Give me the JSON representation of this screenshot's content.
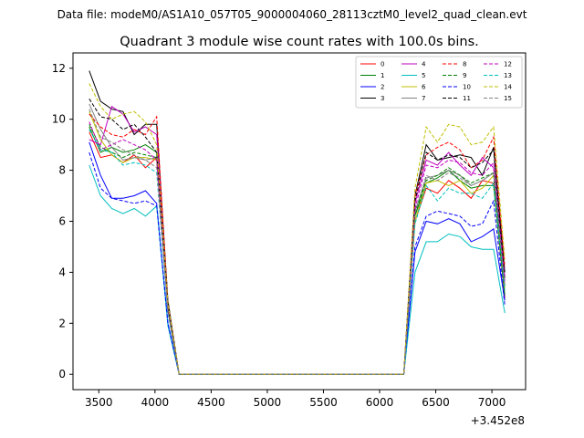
{
  "figure": {
    "suptitle": "Data file: modeM0/AS1A10_057T05_9000004060_28113cztM0_level2_quad_clean.evt"
  },
  "chart_data": {
    "type": "line",
    "title": "Quadrant 3 module wise count rates with 100.0s bins.",
    "xlabel": "",
    "ylabel": "",
    "x_offset_label": "+3.452e8",
    "xlim": [
      3270,
      7300
    ],
    "ylim": [
      -0.6,
      12.6
    ],
    "xticks": [
      3500,
      4000,
      4500,
      5000,
      5500,
      6000,
      6500,
      7000
    ],
    "yticks": [
      0,
      2,
      4,
      6,
      8,
      10,
      12
    ],
    "grid": false,
    "legend": {
      "position": "top-right",
      "columns": 4
    },
    "x": [
      3415,
      3515,
      3615,
      3715,
      3815,
      3915,
      4015,
      4115,
      4215,
      6215,
      6315,
      6415,
      6515,
      6615,
      6715,
      6815,
      6915,
      7015,
      7115
    ],
    "series": [
      {
        "name": "0",
        "color": "#ff0000",
        "dash": false,
        "values": [
          9.5,
          8.5,
          8.6,
          8.3,
          8.6,
          8.1,
          8.5,
          2.5,
          0,
          0,
          6.0,
          7.3,
          7.1,
          7.6,
          7.3,
          6.9,
          7.6,
          7.5,
          3.0
        ]
      },
      {
        "name": "1",
        "color": "#008000",
        "dash": false,
        "values": [
          9.7,
          8.7,
          8.9,
          8.7,
          8.8,
          9.0,
          8.7,
          2.6,
          0,
          0,
          6.2,
          7.5,
          7.7,
          8.0,
          7.6,
          7.3,
          7.4,
          7.4,
          3.1
        ]
      },
      {
        "name": "2",
        "color": "#0000ff",
        "dash": false,
        "values": [
          9.1,
          7.8,
          6.9,
          6.9,
          7.0,
          7.2,
          6.7,
          2.0,
          0,
          0,
          4.8,
          6.0,
          5.9,
          6.1,
          5.9,
          5.2,
          5.4,
          5.7,
          2.9
        ]
      },
      {
        "name": "3",
        "color": "#000000",
        "dash": false,
        "values": [
          11.9,
          10.7,
          10.4,
          10.3,
          9.4,
          9.8,
          9.8,
          2.9,
          0,
          0,
          7.0,
          9.0,
          8.4,
          8.5,
          8.6,
          8.5,
          7.8,
          8.9,
          4.0
        ]
      },
      {
        "name": "4",
        "color": "#bf00bf",
        "dash": false,
        "values": [
          9.2,
          9.0,
          10.5,
          10.2,
          9.5,
          9.7,
          9.4,
          2.7,
          0,
          0,
          6.7,
          8.4,
          8.2,
          8.7,
          8.2,
          7.8,
          8.5,
          8.1,
          3.8
        ]
      },
      {
        "name": "5",
        "color": "#00bfbf",
        "dash": false,
        "values": [
          8.2,
          7.0,
          6.5,
          6.3,
          6.5,
          6.2,
          6.6,
          1.9,
          0,
          0,
          4.0,
          5.2,
          5.2,
          5.5,
          5.4,
          5.0,
          4.9,
          4.9,
          2.4
        ]
      },
      {
        "name": "6",
        "color": "#bfbf00",
        "dash": false,
        "values": [
          10.3,
          9.2,
          8.6,
          8.3,
          8.5,
          8.5,
          8.4,
          2.5,
          0,
          0,
          6.0,
          7.5,
          7.6,
          7.4,
          7.6,
          7.1,
          7.3,
          7.8,
          3.4
        ]
      },
      {
        "name": "7",
        "color": "#808080",
        "dash": false,
        "values": [
          10.6,
          9.6,
          8.9,
          8.4,
          8.5,
          8.4,
          8.5,
          2.5,
          0,
          0,
          6.4,
          7.7,
          7.8,
          8.0,
          7.8,
          7.4,
          7.6,
          7.9,
          3.5
        ]
      },
      {
        "name": "8",
        "color": "#ff0000",
        "dash": true,
        "values": [
          10.2,
          9.7,
          9.4,
          9.3,
          9.6,
          9.4,
          10.1,
          2.8,
          0,
          0,
          7.0,
          8.6,
          8.9,
          9.1,
          8.8,
          8.1,
          8.4,
          9.3,
          4.2
        ]
      },
      {
        "name": "9",
        "color": "#008000",
        "dash": true,
        "values": [
          9.8,
          8.9,
          8.7,
          8.5,
          8.7,
          8.6,
          8.5,
          2.5,
          0,
          0,
          6.3,
          7.6,
          7.8,
          8.1,
          7.8,
          7.5,
          7.7,
          7.9,
          3.5
        ]
      },
      {
        "name": "10",
        "color": "#0000ff",
        "dash": true,
        "values": [
          8.7,
          7.3,
          6.9,
          6.8,
          6.7,
          6.8,
          6.6,
          2.0,
          0,
          0,
          5.0,
          6.2,
          6.4,
          6.3,
          6.2,
          5.8,
          5.9,
          6.8,
          2.7
        ]
      },
      {
        "name": "11",
        "color": "#000000",
        "dash": true,
        "values": [
          10.8,
          10.1,
          10.0,
          9.6,
          9.8,
          9.3,
          8.7,
          2.7,
          0,
          0,
          6.8,
          8.7,
          8.4,
          8.6,
          8.5,
          8.1,
          8.3,
          8.8,
          3.7
        ]
      },
      {
        "name": "12",
        "color": "#bf00bf",
        "dash": true,
        "values": [
          9.9,
          8.8,
          9.0,
          9.2,
          9.0,
          8.8,
          8.4,
          2.6,
          0,
          0,
          6.5,
          8.2,
          8.1,
          8.4,
          8.3,
          7.9,
          7.8,
          8.3,
          3.6
        ]
      },
      {
        "name": "13",
        "color": "#00bfbf",
        "dash": true,
        "values": [
          9.6,
          8.8,
          8.7,
          8.2,
          8.3,
          8.2,
          7.9,
          2.4,
          0,
          0,
          5.9,
          7.4,
          6.8,
          7.3,
          7.1,
          7.1,
          6.9,
          7.5,
          3.3
        ]
      },
      {
        "name": "14",
        "color": "#bfbf00",
        "dash": true,
        "values": [
          11.4,
          10.5,
          10.0,
          10.2,
          10.3,
          9.9,
          9.0,
          2.8,
          0,
          0,
          7.3,
          9.7,
          9.1,
          9.8,
          9.7,
          9.0,
          9.1,
          9.7,
          4.5
        ]
      },
      {
        "name": "15",
        "color": "#808080",
        "dash": true,
        "values": [
          10.4,
          9.3,
          9.1,
          8.8,
          8.6,
          8.4,
          8.1,
          2.5,
          0,
          0,
          6.3,
          7.8,
          7.6,
          7.9,
          7.7,
          7.4,
          7.6,
          7.9,
          3.5
        ]
      }
    ]
  }
}
